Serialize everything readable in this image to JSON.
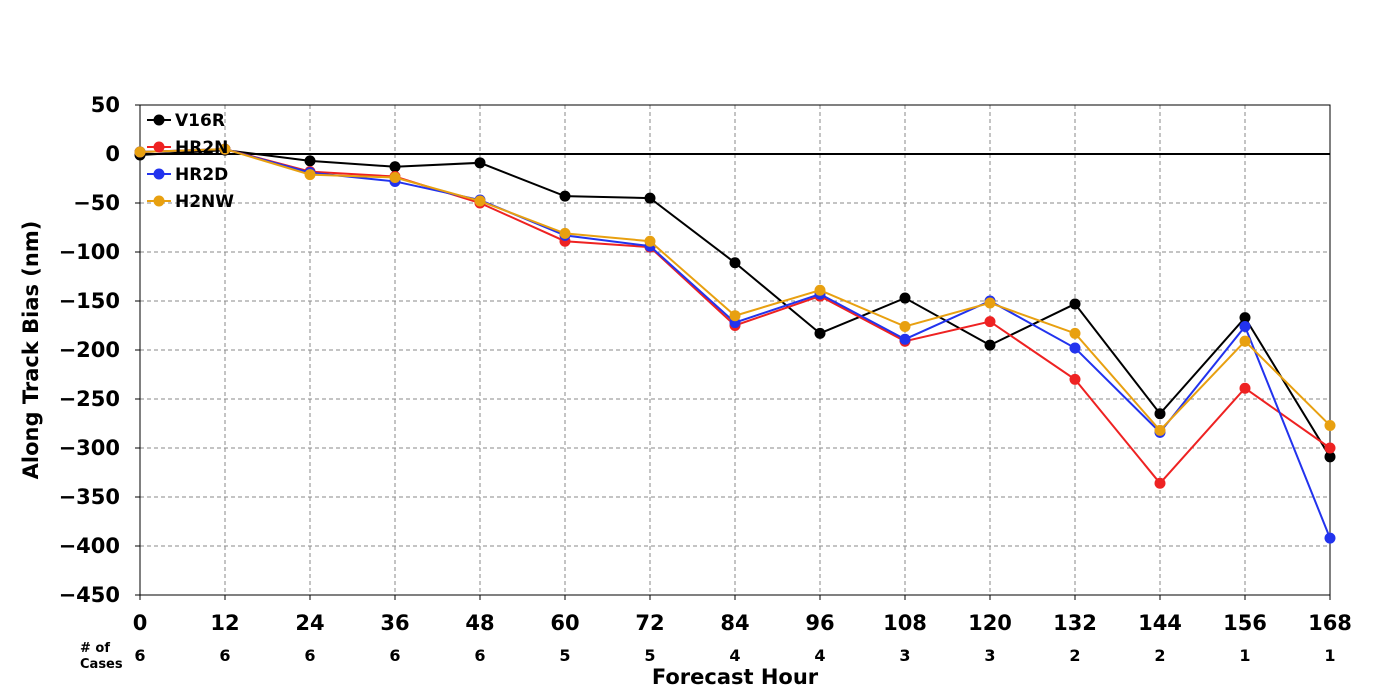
{
  "chart_data": {
    "type": "line",
    "xlabel": "Forecast Hour",
    "ylabel": "Along Track Bias (nm)",
    "cases_label": [
      "# of",
      "Cases"
    ],
    "x": [
      0,
      12,
      24,
      36,
      48,
      60,
      72,
      84,
      96,
      108,
      120,
      132,
      144,
      156,
      168
    ],
    "cases": [
      6,
      6,
      6,
      6,
      6,
      5,
      5,
      4,
      4,
      3,
      3,
      2,
      2,
      1,
      1
    ],
    "xlim": [
      0,
      168
    ],
    "ylim": [
      -450,
      50
    ],
    "yticks": [
      50,
      0,
      -50,
      -100,
      -150,
      -200,
      -250,
      -300,
      -350,
      -400,
      -450
    ],
    "grid": true,
    "zero_line": true,
    "legend_position": "top-left",
    "series": [
      {
        "name": "V16R",
        "color": "#000000",
        "values": [
          -1,
          4,
          -7,
          -13,
          -9,
          -43,
          -45,
          -111,
          -183,
          -147,
          -195,
          -153,
          -265,
          -167,
          -309
        ]
      },
      {
        "name": "HR2N",
        "color": "#ee2222",
        "values": [
          2,
          5,
          -18,
          -23,
          -50,
          -89,
          -95,
          -175,
          -145,
          -191,
          -171,
          -230,
          -336,
          -239,
          -300
        ]
      },
      {
        "name": "HR2D",
        "color": "#2233ee",
        "values": [
          2,
          5,
          -19,
          -28,
          -47,
          -83,
          -94,
          -172,
          -143,
          -189,
          -150,
          -198,
          -284,
          -176,
          -392
        ]
      },
      {
        "name": "H2NW",
        "color": "#e8a010",
        "values": [
          2,
          5,
          -21,
          -24,
          -48,
          -81,
          -89,
          -165,
          -139,
          -176,
          -152,
          -183,
          -282,
          -191,
          -277
        ]
      }
    ]
  }
}
